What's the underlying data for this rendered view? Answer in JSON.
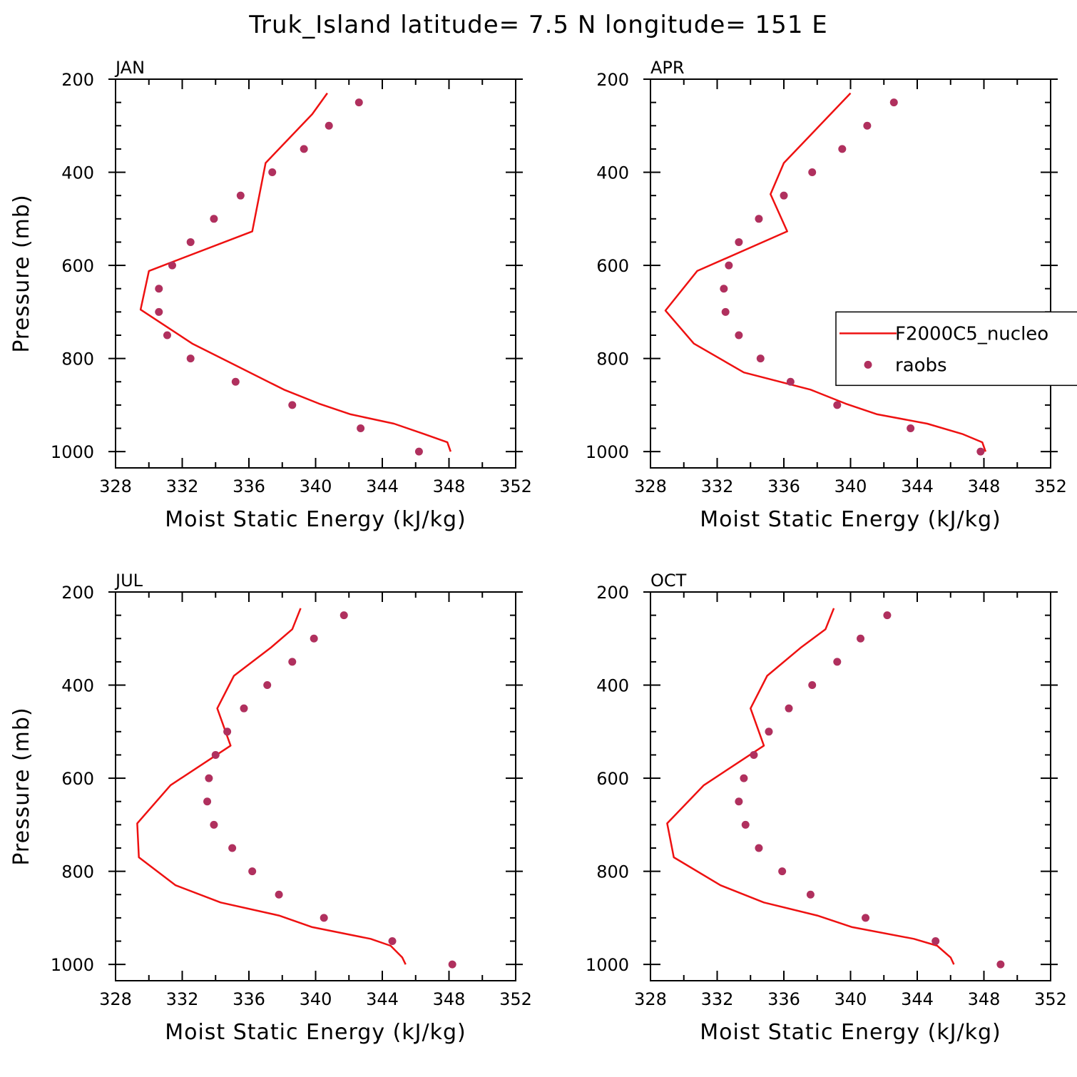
{
  "figure_title": "Truk_Island  latitude= 7.5 N longitude= 151 E",
  "colors": {
    "model": "#ee1111",
    "obs": "#b0305e",
    "axis": "#000000"
  },
  "legend": {
    "location": "APR panel, right side",
    "entries": [
      {
        "label": "F2000C5_nucleo",
        "marker": "line"
      },
      {
        "label": "raobs",
        "marker": "dot"
      }
    ]
  },
  "chart_data": [
    {
      "type": "line+scatter",
      "title": "JAN",
      "xlabel": "Moist Static Energy (kJ/kg)",
      "ylabel": "Pressure (mb)",
      "xlim": [
        328,
        352
      ],
      "ylim": [
        1000,
        200
      ],
      "xticks": [
        "328",
        "332",
        "336",
        "340",
        "344",
        "348",
        "352"
      ],
      "yticks": [
        "200",
        "400",
        "600",
        "800",
        "1000"
      ],
      "series": [
        {
          "name": "F2000C5_nucleo",
          "kind": "line",
          "x": [
            348.1,
            347.9,
            346.5,
            344.7,
            342.1,
            340.2,
            338.1,
            332.6,
            329.5,
            330.0,
            336.2,
            337.0,
            339.8,
            340.7
          ],
          "y": [
            1000,
            980,
            962,
            940,
            920,
            897,
            867,
            768,
            695,
            612,
            527,
            380,
            275,
            230
          ]
        },
        {
          "name": "raobs",
          "kind": "scatter",
          "x": [
            346.2,
            342.7,
            338.6,
            335.2,
            332.5,
            331.1,
            330.6,
            330.6,
            331.4,
            332.5,
            333.9,
            335.5,
            337.4,
            339.3,
            340.8,
            342.6
          ],
          "y": [
            1000,
            950,
            900,
            850,
            800,
            750,
            700,
            650,
            600,
            550,
            500,
            450,
            400,
            350,
            300,
            250
          ]
        }
      ]
    },
    {
      "type": "line+scatter",
      "title": "APR",
      "xlabel": "Moist Static Energy (kJ/kg)",
      "ylabel": "",
      "xlim": [
        328,
        352
      ],
      "ylim": [
        1000,
        200
      ],
      "xticks": [
        "328",
        "332",
        "336",
        "340",
        "344",
        "348",
        "352"
      ],
      "yticks": [
        "200",
        "400",
        "600",
        "800",
        "1000"
      ],
      "series": [
        {
          "name": "F2000C5_nucleo",
          "kind": "line",
          "x": [
            348.1,
            347.9,
            346.7,
            344.6,
            341.6,
            339.7,
            337.6,
            333.6,
            330.6,
            328.9,
            330.8,
            336.2,
            335.2,
            336.0,
            340.0
          ],
          "y": [
            1000,
            980,
            962,
            940,
            920,
            897,
            867,
            830,
            768,
            697,
            612,
            527,
            447,
            380,
            230
          ]
        },
        {
          "name": "raobs",
          "kind": "scatter",
          "x": [
            347.8,
            343.6,
            339.2,
            336.4,
            334.6,
            333.3,
            332.5,
            332.4,
            332.7,
            333.3,
            334.5,
            336.0,
            337.7,
            339.5,
            341.0,
            342.6
          ],
          "y": [
            1000,
            950,
            900,
            850,
            800,
            750,
            700,
            650,
            600,
            550,
            500,
            450,
            400,
            350,
            300,
            250
          ]
        }
      ]
    },
    {
      "type": "line+scatter",
      "title": "JUL",
      "xlabel": "Moist Static Energy (kJ/kg)",
      "ylabel": "Pressure (mb)",
      "xlim": [
        328,
        352
      ],
      "ylim": [
        1000,
        200
      ],
      "xticks": [
        "328",
        "332",
        "336",
        "340",
        "344",
        "348",
        "352"
      ],
      "yticks": [
        "200",
        "400",
        "600",
        "800",
        "1000"
      ],
      "series": [
        {
          "name": "F2000C5_nucleo",
          "kind": "line",
          "x": [
            345.4,
            345.2,
            344.5,
            343.3,
            339.8,
            337.8,
            334.3,
            331.6,
            329.4,
            329.3,
            331.3,
            334.9,
            334.1,
            335.1,
            337.3,
            338.6,
            339.1
          ],
          "y": [
            1000,
            985,
            960,
            945,
            920,
            895,
            867,
            830,
            770,
            697,
            615,
            530,
            450,
            380,
            320,
            280,
            235
          ]
        },
        {
          "name": "raobs",
          "kind": "scatter",
          "x": [
            348.2,
            344.6,
            340.5,
            337.8,
            336.2,
            335.0,
            333.9,
            333.5,
            333.6,
            334.0,
            334.7,
            335.7,
            337.1,
            338.6,
            339.9,
            341.7
          ],
          "y": [
            1000,
            950,
            900,
            850,
            800,
            750,
            700,
            650,
            600,
            550,
            500,
            450,
            400,
            350,
            300,
            250
          ]
        }
      ]
    },
    {
      "type": "line+scatter",
      "title": "OCT",
      "xlabel": "Moist Static Energy (kJ/kg)",
      "ylabel": "",
      "xlim": [
        328,
        352
      ],
      "ylim": [
        1000,
        200
      ],
      "xticks": [
        "328",
        "332",
        "336",
        "340",
        "344",
        "348",
        "352"
      ],
      "yticks": [
        "200",
        "400",
        "600",
        "800",
        "1000"
      ],
      "series": [
        {
          "name": "F2000C5_nucleo",
          "kind": "line",
          "x": [
            346.2,
            346.0,
            345.2,
            343.8,
            340.1,
            338.0,
            334.8,
            332.2,
            329.4,
            329.0,
            331.2,
            334.8,
            334.0,
            335.0,
            337.0,
            338.5,
            339.0
          ],
          "y": [
            1000,
            985,
            960,
            945,
            920,
            895,
            867,
            830,
            770,
            697,
            615,
            530,
            450,
            380,
            320,
            280,
            235
          ]
        },
        {
          "name": "raobs",
          "kind": "scatter",
          "x": [
            349.0,
            345.1,
            340.9,
            337.6,
            335.9,
            334.5,
            333.7,
            333.3,
            333.6,
            334.2,
            335.1,
            336.3,
            337.7,
            339.2,
            340.6,
            342.2
          ],
          "y": [
            1000,
            950,
            900,
            850,
            800,
            750,
            700,
            650,
            600,
            550,
            500,
            450,
            400,
            350,
            300,
            250
          ]
        }
      ]
    }
  ]
}
